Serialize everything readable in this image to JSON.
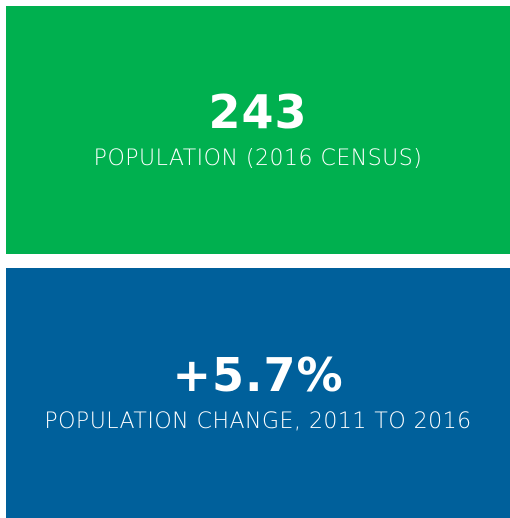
{
  "cards": [
    {
      "value": "243",
      "label": "POPULATION (2016 CENSUS)"
    },
    {
      "value": "+5.7%",
      "label": "POPULATION CHANGE, 2011 TO 2016"
    }
  ]
}
